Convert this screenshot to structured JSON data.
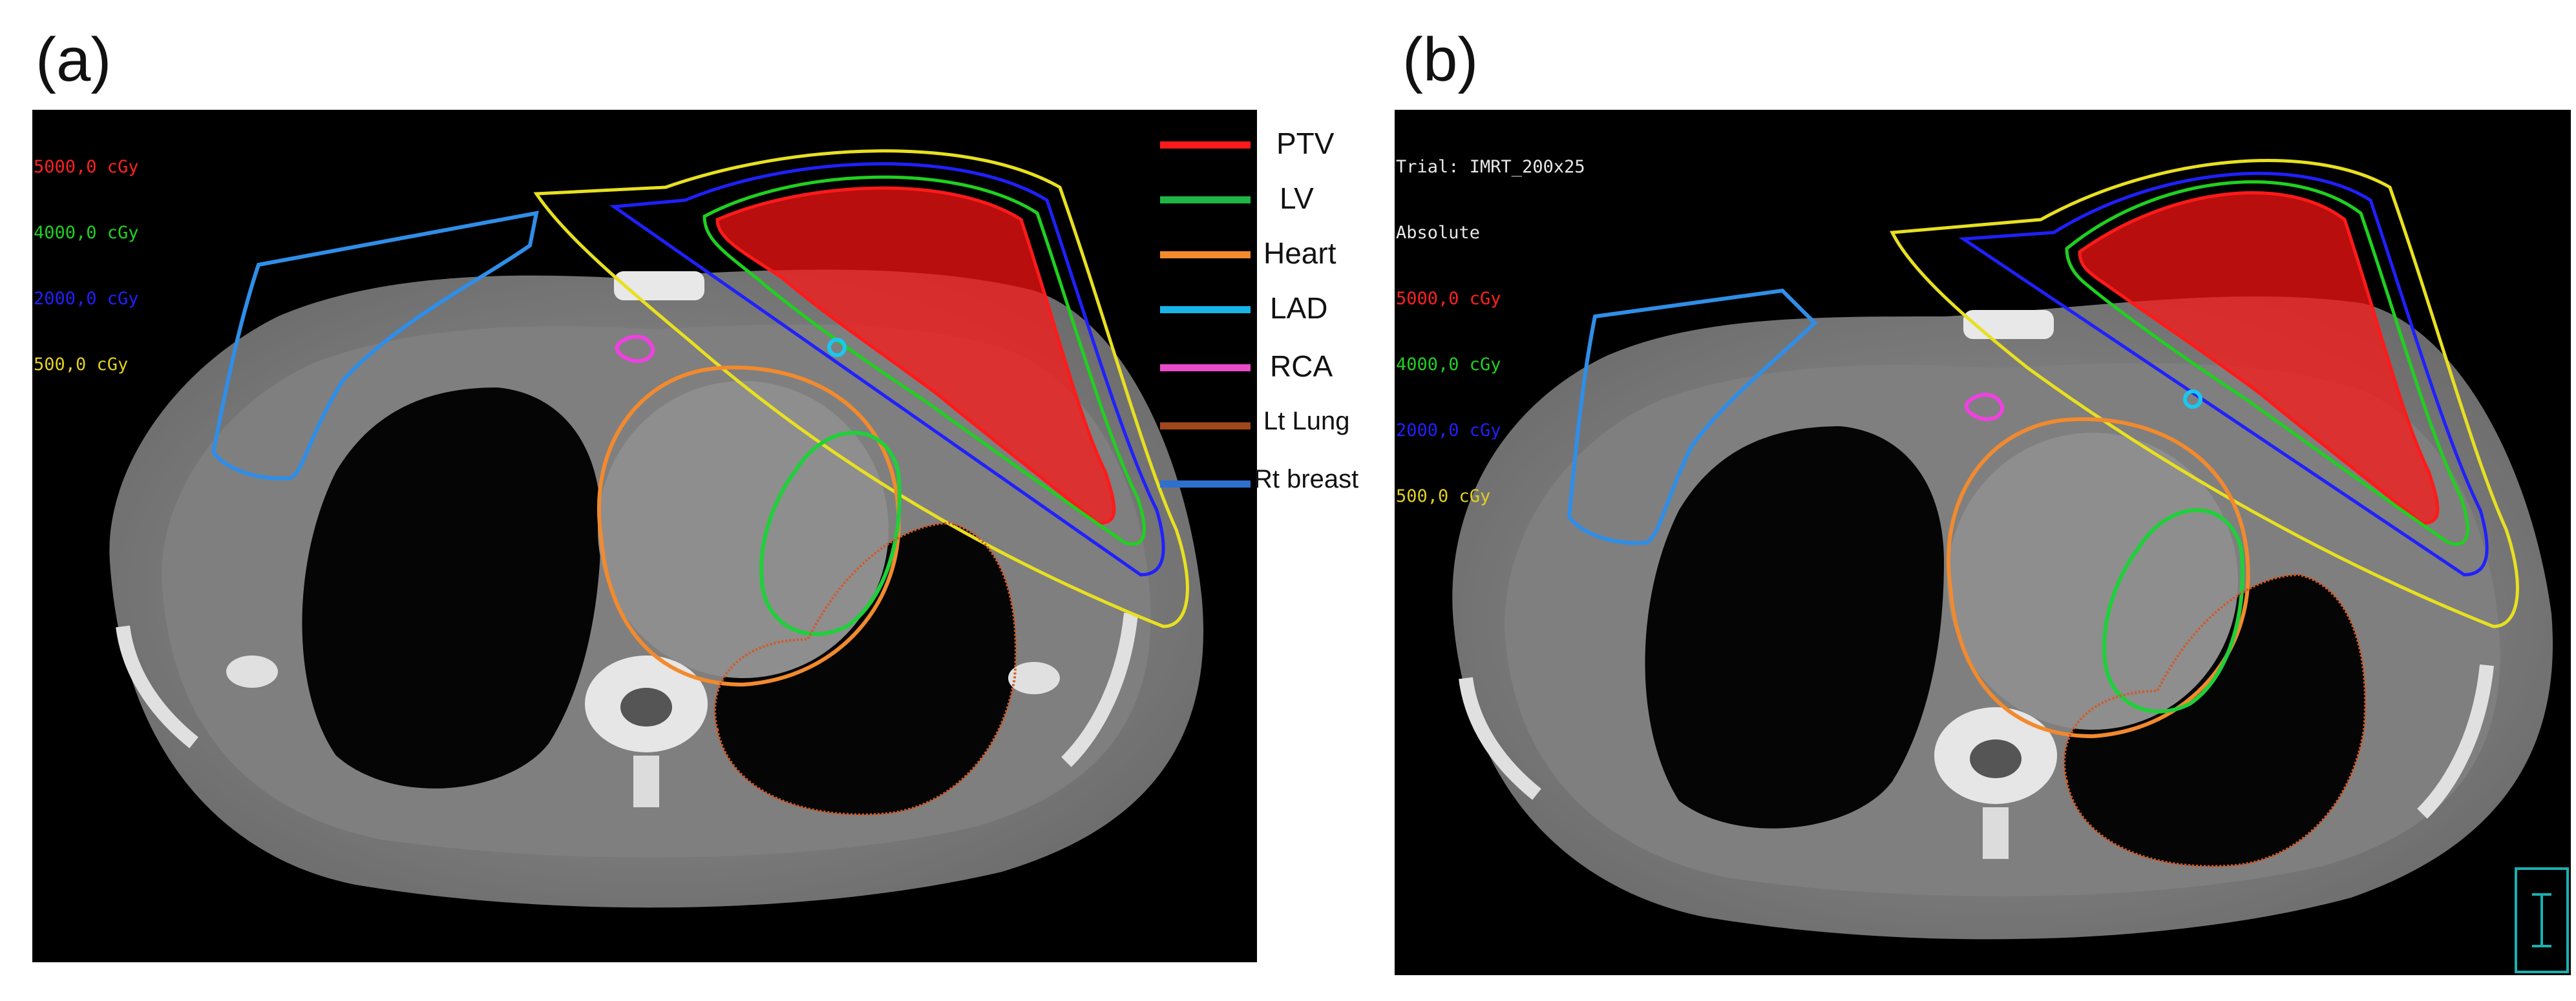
{
  "panels": [
    {
      "label": "(a)",
      "dose_legend": [
        "5000,0 cGy",
        "4000,0 cGy",
        "2000,0 cGy",
        "500,0 cGy"
      ],
      "dose_colors": [
        "#ff2020",
        "#20d020",
        "#2020ff",
        "#e0d020"
      ]
    },
    {
      "label": "(b)",
      "header": [
        "Trial: IMRT_200x25",
        "Absolute"
      ],
      "dose_legend": [
        "5000,0 cGy",
        "4000,0 cGy",
        "2000,0 cGy",
        "500,0 cGy"
      ],
      "dose_colors": [
        "#ff2020",
        "#20d020",
        "#2020ff",
        "#e0d020"
      ]
    }
  ],
  "structure_legend": [
    {
      "label": "PTV",
      "color": "#ff1a1a"
    },
    {
      "label": "LV",
      "color": "#1fb544"
    },
    {
      "label": "Heart",
      "color": "#f28a2e"
    },
    {
      "label": "LAD",
      "color": "#18b4e8"
    },
    {
      "label": "RCA",
      "color": "#e84ac8"
    },
    {
      "label": "Lt Lung",
      "color": "#a0481a"
    },
    {
      "label": "Rt breast",
      "color": "#2f6fd0"
    }
  ],
  "contour_colors": {
    "body": "#6f6f6f",
    "ptv": "#ff1a1a",
    "lv": "#1fd03a",
    "heart": "#f28a2e",
    "lad": "#18c8f0",
    "rca": "#f040e0",
    "lt_lung": "#d05a2a",
    "rt_breast": "#2f8ee8",
    "iso_5000": "#ff2020",
    "iso_4000": "#20d020",
    "iso_2000": "#2020ff",
    "iso_500": "#e8e020"
  }
}
